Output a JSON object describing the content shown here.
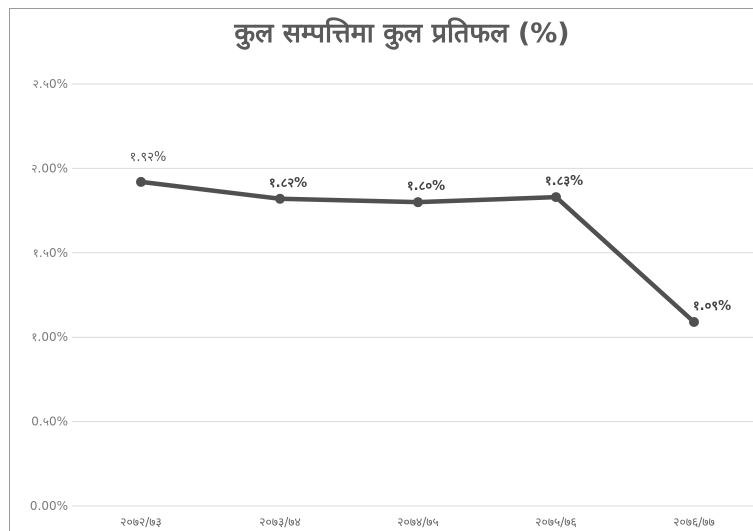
{
  "chart_data": {
    "type": "line",
    "title": "कुल सम्पत्तिमा कुल प्रतिफल (%)",
    "categories": [
      "२०७२/७३",
      "२०७३/७४",
      "२०७४/७५",
      "२०७५/७६",
      "२०७६/७७"
    ],
    "series": [
      {
        "values": [
          1.92,
          1.82,
          1.8,
          1.83,
          1.09
        ]
      }
    ],
    "data_labels": [
      "१.९२%",
      "१.८२%",
      "१.८०%",
      "१.८३%",
      "१.०९%"
    ],
    "y_ticks": [
      {
        "value": 0.0,
        "label": "0.00%"
      },
      {
        "value": 0.5,
        "label": "0.५0%"
      },
      {
        "value": 1.0,
        "label": "१.00%"
      },
      {
        "value": 1.5,
        "label": "१.५0%"
      },
      {
        "value": 2.0,
        "label": "२.00%"
      },
      {
        "value": 2.5,
        "label": "२.५0%"
      }
    ],
    "ylim": [
      0,
      2.5
    ],
    "grid": true,
    "legend": "none",
    "line_color": "#505050",
    "grid_color": "#d9d9d9"
  }
}
